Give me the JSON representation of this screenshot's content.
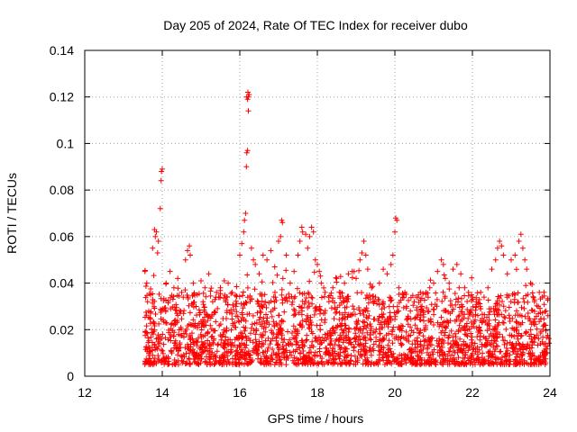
{
  "chart_data": {
    "type": "scatter",
    "title": "Day 205 of 2024, Rate Of TEC Index for receiver dubo",
    "xlabel": "GPS time / hours",
    "ylabel": "ROTI / TECUs",
    "xlim": [
      12,
      24
    ],
    "ylim": [
      0,
      0.14
    ],
    "x_ticks": [
      12,
      14,
      16,
      18,
      20,
      22,
      24
    ],
    "x_tick_labels": [
      "12",
      "14",
      "16",
      "18",
      "20",
      "22",
      "24"
    ],
    "y_ticks": [
      0,
      0.02,
      0.04,
      0.06,
      0.08,
      0.1,
      0.12,
      0.14
    ],
    "y_tick_labels": [
      "0",
      "0.02",
      "0.04",
      "0.06",
      "0.08",
      "0.1",
      "0.12",
      "0.14"
    ],
    "grid": true,
    "marker": "+",
    "color": "#ff0000",
    "series": [
      {
        "name": "ROTI",
        "points": [
          [
            13.55,
            0.045
          ],
          [
            13.6,
            0.04
          ],
          [
            13.62,
            0.032
          ],
          [
            13.65,
            0.028
          ],
          [
            13.7,
            0.035
          ],
          [
            13.75,
            0.055
          ],
          [
            13.8,
            0.063
          ],
          [
            13.82,
            0.06
          ],
          [
            13.85,
            0.062
          ],
          [
            13.9,
            0.058
          ],
          [
            13.95,
            0.072
          ],
          [
            13.97,
            0.084
          ],
          [
            13.98,
            0.088
          ],
          [
            14.0,
            0.089
          ],
          [
            13.88,
            0.053
          ],
          [
            14.1,
            0.04
          ],
          [
            14.2,
            0.045
          ],
          [
            14.3,
            0.038
          ],
          [
            14.4,
            0.042
          ],
          [
            14.5,
            0.036
          ],
          [
            14.6,
            0.05
          ],
          [
            14.65,
            0.054
          ],
          [
            14.7,
            0.056
          ],
          [
            14.72,
            0.052
          ],
          [
            14.8,
            0.04
          ],
          [
            14.9,
            0.035
          ],
          [
            15.0,
            0.041
          ],
          [
            15.1,
            0.038
          ],
          [
            15.2,
            0.044
          ],
          [
            15.3,
            0.032
          ],
          [
            15.4,
            0.036
          ],
          [
            15.5,
            0.038
          ],
          [
            15.6,
            0.041
          ],
          [
            15.7,
            0.04
          ],
          [
            15.8,
            0.036
          ],
          [
            15.9,
            0.03
          ],
          [
            16.0,
            0.052
          ],
          [
            16.05,
            0.057
          ],
          [
            16.1,
            0.062
          ],
          [
            16.12,
            0.067
          ],
          [
            16.15,
            0.07
          ],
          [
            16.17,
            0.09
          ],
          [
            16.18,
            0.096
          ],
          [
            16.2,
            0.097
          ],
          [
            16.22,
            0.114
          ],
          [
            16.2,
            0.119
          ],
          [
            16.22,
            0.12
          ],
          [
            16.24,
            0.121
          ],
          [
            16.18,
            0.12
          ],
          [
            16.21,
            0.122
          ],
          [
            16.3,
            0.055
          ],
          [
            16.35,
            0.05
          ],
          [
            16.4,
            0.048
          ],
          [
            16.5,
            0.044
          ],
          [
            16.6,
            0.052
          ],
          [
            16.7,
            0.05
          ],
          [
            16.8,
            0.054
          ],
          [
            16.9,
            0.047
          ],
          [
            17.0,
            0.058
          ],
          [
            17.05,
            0.06
          ],
          [
            17.1,
            0.066
          ],
          [
            17.08,
            0.067
          ],
          [
            17.2,
            0.052
          ],
          [
            17.3,
            0.04
          ],
          [
            17.4,
            0.045
          ],
          [
            17.5,
            0.052
          ],
          [
            17.55,
            0.058
          ],
          [
            17.6,
            0.064
          ],
          [
            17.62,
            0.062
          ],
          [
            17.7,
            0.061
          ],
          [
            17.75,
            0.055
          ],
          [
            17.8,
            0.06
          ],
          [
            17.85,
            0.064
          ],
          [
            17.9,
            0.062
          ],
          [
            17.95,
            0.05
          ],
          [
            18.0,
            0.048
          ],
          [
            18.05,
            0.045
          ],
          [
            18.1,
            0.04
          ],
          [
            18.2,
            0.036
          ],
          [
            18.3,
            0.032
          ],
          [
            18.4,
            0.038
          ],
          [
            18.5,
            0.042
          ],
          [
            18.6,
            0.036
          ],
          [
            18.7,
            0.04
          ],
          [
            18.8,
            0.044
          ],
          [
            18.9,
            0.045
          ],
          [
            19.0,
            0.042
          ],
          [
            19.1,
            0.05
          ],
          [
            19.15,
            0.053
          ],
          [
            19.2,
            0.058
          ],
          [
            19.25,
            0.052
          ],
          [
            19.3,
            0.046
          ],
          [
            19.4,
            0.038
          ],
          [
            19.5,
            0.034
          ],
          [
            19.6,
            0.04
          ],
          [
            19.7,
            0.046
          ],
          [
            19.8,
            0.044
          ],
          [
            19.9,
            0.048
          ],
          [
            19.95,
            0.052
          ],
          [
            20.0,
            0.062
          ],
          [
            20.02,
            0.068
          ],
          [
            20.05,
            0.067
          ],
          [
            20.1,
            0.038
          ],
          [
            20.2,
            0.034
          ],
          [
            20.3,
            0.03
          ],
          [
            20.4,
            0.028
          ],
          [
            20.5,
            0.032
          ],
          [
            20.6,
            0.034
          ],
          [
            20.7,
            0.03
          ],
          [
            20.8,
            0.036
          ],
          [
            20.9,
            0.038
          ],
          [
            21.0,
            0.04
          ],
          [
            21.1,
            0.045
          ],
          [
            21.2,
            0.05
          ],
          [
            21.25,
            0.048
          ],
          [
            21.3,
            0.042
          ],
          [
            21.4,
            0.04
          ],
          [
            21.5,
            0.046
          ],
          [
            21.6,
            0.048
          ],
          [
            21.7,
            0.044
          ],
          [
            21.8,
            0.038
          ],
          [
            21.9,
            0.036
          ],
          [
            22.0,
            0.034
          ],
          [
            22.1,
            0.032
          ],
          [
            22.2,
            0.03
          ],
          [
            22.3,
            0.034
          ],
          [
            22.4,
            0.038
          ],
          [
            22.5,
            0.046
          ],
          [
            22.6,
            0.05
          ],
          [
            22.65,
            0.055
          ],
          [
            22.7,
            0.058
          ],
          [
            22.75,
            0.056
          ],
          [
            22.8,
            0.052
          ],
          [
            22.9,
            0.044
          ],
          [
            23.0,
            0.05
          ],
          [
            23.1,
            0.052
          ],
          [
            23.2,
            0.058
          ],
          [
            23.25,
            0.061
          ],
          [
            23.3,
            0.055
          ],
          [
            23.35,
            0.05
          ],
          [
            23.4,
            0.046
          ],
          [
            23.5,
            0.04
          ],
          [
            23.6,
            0.032
          ],
          [
            23.7,
            0.03
          ],
          [
            23.8,
            0.034
          ],
          [
            23.9,
            0.028
          ],
          [
            23.95,
            0.026
          ]
        ]
      }
    ],
    "density_band": {
      "x_start": 13.55,
      "x_end": 23.98,
      "low": 0.005,
      "high": 0.032,
      "count": 2400,
      "seed": 205
    }
  }
}
